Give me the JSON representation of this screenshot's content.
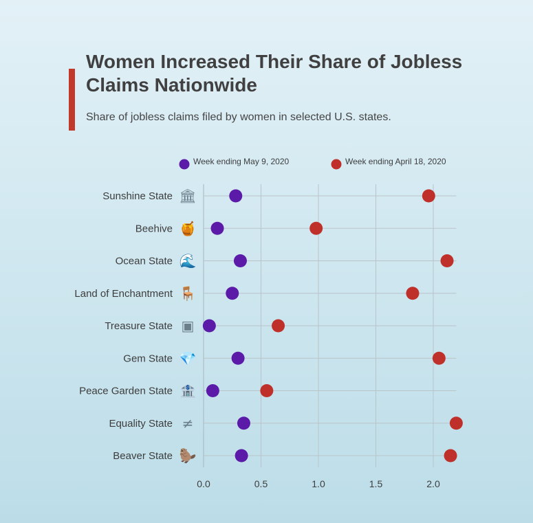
{
  "header": {
    "title": "Women Increased Their Share of Jobless Claims Nationwide",
    "subtitle": "Share of jobless claims filed by women in selected U.S. states."
  },
  "chart_data": {
    "type": "scatter",
    "categories": [
      "Sunshine State",
      "Beehive",
      "Ocean State",
      "Land of Enchantment",
      "Treasure State",
      "Gem State",
      "Peace Garden State",
      "Equality State",
      "Beaver State"
    ],
    "icons": [
      "classical-building-icon",
      "honey-pot-icon",
      "ocean-wave-icon",
      "bench-icon",
      "treasure-chest-icon",
      "gem-icon",
      "bank-building-icon",
      "not-equal-icon",
      "beaver-icon"
    ],
    "icon_glyphs": [
      "🏛",
      "🍯",
      "🌊",
      "🪑",
      "▣",
      "💎",
      "🏦",
      "≠",
      "🦫"
    ],
    "series": [
      {
        "name": "Week ending May 9, 2020",
        "color": "#5b1aa8",
        "values": [
          0.28,
          0.12,
          0.32,
          0.25,
          0.05,
          0.3,
          0.08,
          0.35,
          0.33
        ]
      },
      {
        "name": "Week ending April 18, 2020",
        "color": "#c0302a",
        "values": [
          1.96,
          0.98,
          2.12,
          1.82,
          0.65,
          2.05,
          0.55,
          2.2,
          2.15
        ]
      }
    ],
    "xticks": [
      "0.0",
      "0.5",
      "1.0",
      "1.5",
      "2.0"
    ],
    "xtick_values": [
      0,
      0.5,
      1.0,
      1.5,
      2.0
    ],
    "xlim": [
      0,
      2.2
    ],
    "grid": true,
    "legend_position": "top"
  }
}
